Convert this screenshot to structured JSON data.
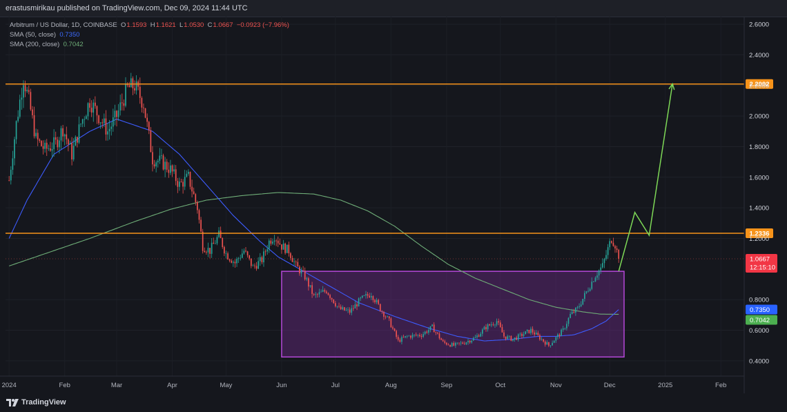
{
  "header": {
    "publish_line": "erastusmirikau published on TradingView.com, Dec 09, 2024 11:44 UTC"
  },
  "legend": {
    "symbol": "Arbitrum / US Dollar, 1D, COINBASE",
    "o_label": "O",
    "o_value": "1.1593",
    "h_label": "H",
    "h_value": "1.1621",
    "l_label": "L",
    "l_value": "1.0530",
    "c_label": "C",
    "c_value": "1.0667",
    "change": "−0.0923 (−7.96%)",
    "sma50_label": "SMA (50, close)",
    "sma50_value": "0.7350",
    "sma200_label": "SMA (200, close)",
    "sma200_value": "0.7042"
  },
  "footer": {
    "logo_text": "TradingView"
  },
  "colors": {
    "background": "#15171d",
    "up": "#26a69a",
    "down": "#ef5350",
    "sma50": "#3d5cff",
    "sma200": "#6fae78",
    "level": "#f7931a",
    "box_fill": "#6b2a86",
    "box_stroke": "#b548d8",
    "projection": "#7ed957",
    "price_badge": "#f23645",
    "sma50_badge": "#2962ff",
    "sma200_badge": "#4caf50"
  },
  "chart_data": {
    "type": "candlestick",
    "symbol": "Arbitrum / US Dollar",
    "timeframe": "1D",
    "exchange": "COINBASE",
    "ylim": [
      0.3,
      2.65
    ],
    "y_ticks": [
      "2.6000",
      "2.4000",
      "2.2000",
      "2.0000",
      "1.8000",
      "1.6000",
      "1.4000",
      "1.2000",
      "0.8000",
      "0.6000",
      "0.4000"
    ],
    "x_ticks": [
      {
        "label": "2024",
        "day": 0
      },
      {
        "label": "Feb",
        "day": 31
      },
      {
        "label": "Mar",
        "day": 60
      },
      {
        "label": "Apr",
        "day": 91
      },
      {
        "label": "May",
        "day": 121
      },
      {
        "label": "Jun",
        "day": 152
      },
      {
        "label": "Jul",
        "day": 182
      },
      {
        "label": "Aug",
        "day": 213
      },
      {
        "label": "Sep",
        "day": 244
      },
      {
        "label": "Oct",
        "day": 274
      },
      {
        "label": "Nov",
        "day": 305
      },
      {
        "label": "Dec",
        "day": 335
      },
      {
        "label": "2025",
        "day": 366
      },
      {
        "label": "Feb",
        "day": 397
      }
    ],
    "x_domain": [
      -2,
      410
    ],
    "price_anchors": [
      [
        0,
        1.58
      ],
      [
        4,
        1.95
      ],
      [
        8,
        2.25
      ],
      [
        11,
        2.1
      ],
      [
        15,
        1.85
      ],
      [
        20,
        1.78
      ],
      [
        26,
        1.82
      ],
      [
        30,
        1.92
      ],
      [
        35,
        1.75
      ],
      [
        40,
        1.95
      ],
      [
        45,
        2.1
      ],
      [
        50,
        2.0
      ],
      [
        55,
        1.9
      ],
      [
        60,
        2.0
      ],
      [
        66,
        2.18
      ],
      [
        70,
        2.2
      ],
      [
        75,
        2.08
      ],
      [
        80,
        1.72
      ],
      [
        85,
        1.7
      ],
      [
        90,
        1.65
      ],
      [
        95,
        1.55
      ],
      [
        100,
        1.6
      ],
      [
        105,
        1.4
      ],
      [
        108,
        1.15
      ],
      [
        112,
        1.12
      ],
      [
        117,
        1.22
      ],
      [
        121,
        1.1
      ],
      [
        126,
        1.04
      ],
      [
        131,
        1.12
      ],
      [
        136,
        1.01
      ],
      [
        141,
        1.06
      ],
      [
        145,
        1.18
      ],
      [
        148,
        1.22
      ],
      [
        152,
        1.15
      ],
      [
        156,
        1.12
      ],
      [
        160,
        1.02
      ],
      [
        165,
        0.95
      ],
      [
        170,
        0.82
      ],
      [
        177,
        0.86
      ],
      [
        184,
        0.74
      ],
      [
        190,
        0.72
      ],
      [
        196,
        0.8
      ],
      [
        202,
        0.84
      ],
      [
        207,
        0.74
      ],
      [
        212,
        0.66
      ],
      [
        217,
        0.53
      ],
      [
        222,
        0.56
      ],
      [
        230,
        0.57
      ],
      [
        236,
        0.62
      ],
      [
        242,
        0.52
      ],
      [
        248,
        0.5
      ],
      [
        254,
        0.52
      ],
      [
        260,
        0.55
      ],
      [
        266,
        0.62
      ],
      [
        272,
        0.66
      ],
      [
        276,
        0.56
      ],
      [
        281,
        0.54
      ],
      [
        286,
        0.57
      ],
      [
        291,
        0.6
      ],
      [
        296,
        0.55
      ],
      [
        301,
        0.5
      ],
      [
        305,
        0.55
      ],
      [
        309,
        0.6
      ],
      [
        313,
        0.7
      ],
      [
        317,
        0.74
      ],
      [
        322,
        0.85
      ],
      [
        327,
        0.96
      ],
      [
        331,
        1.02
      ],
      [
        334,
        1.13
      ],
      [
        336,
        1.2
      ],
      [
        338,
        1.16
      ],
      [
        340,
        1.07
      ]
    ],
    "sma50_anchors": [
      [
        0,
        1.2
      ],
      [
        10,
        1.45
      ],
      [
        25,
        1.75
      ],
      [
        45,
        1.9
      ],
      [
        60,
        1.98
      ],
      [
        80,
        1.9
      ],
      [
        95,
        1.75
      ],
      [
        110,
        1.55
      ],
      [
        125,
        1.35
      ],
      [
        140,
        1.18
      ],
      [
        150,
        1.08
      ],
      [
        165,
        0.98
      ],
      [
        180,
        0.88
      ],
      [
        195,
        0.78
      ],
      [
        215,
        0.69
      ],
      [
        235,
        0.61
      ],
      [
        250,
        0.56
      ],
      [
        265,
        0.53
      ],
      [
        280,
        0.54
      ],
      [
        295,
        0.56
      ],
      [
        305,
        0.56
      ],
      [
        315,
        0.57
      ],
      [
        325,
        0.61
      ],
      [
        333,
        0.66
      ],
      [
        340,
        0.735
      ]
    ],
    "sma200_anchors": [
      [
        0,
        1.02
      ],
      [
        20,
        1.1
      ],
      [
        45,
        1.2
      ],
      [
        70,
        1.31
      ],
      [
        90,
        1.39
      ],
      [
        110,
        1.45
      ],
      [
        130,
        1.48
      ],
      [
        150,
        1.5
      ],
      [
        170,
        1.49
      ],
      [
        185,
        1.45
      ],
      [
        200,
        1.38
      ],
      [
        215,
        1.28
      ],
      [
        230,
        1.15
      ],
      [
        245,
        1.03
      ],
      [
        260,
        0.94
      ],
      [
        275,
        0.87
      ],
      [
        290,
        0.8
      ],
      [
        305,
        0.75
      ],
      [
        320,
        0.72
      ],
      [
        330,
        0.705
      ],
      [
        340,
        0.7042
      ]
    ],
    "levels": [
      {
        "value": 2.2092,
        "label": "2.2092"
      },
      {
        "value": 1.2336,
        "label": "1.2336"
      }
    ],
    "current_price": {
      "value": 1.0667,
      "label": "1.0667",
      "countdown": "12:15:10"
    },
    "sma50_last": {
      "value": 0.735,
      "label": "0.7350"
    },
    "sma200_last": {
      "value": 0.7042,
      "label": "0.7042"
    },
    "accumulation_box": {
      "day_start": 152,
      "day_end": 343,
      "price_low": 0.425,
      "price_high": 0.985
    },
    "projection_path": [
      [
        340,
        0.985
      ],
      [
        349,
        1.37
      ],
      [
        357,
        1.22
      ],
      [
        370,
        2.21
      ]
    ]
  }
}
